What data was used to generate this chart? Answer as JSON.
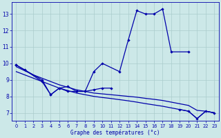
{
  "title": "Graphe des températures (°c)",
  "background_color": "#cce8e8",
  "line_color": "#0000aa",
  "xlim": [
    -0.5,
    23.5
  ],
  "ylim": [
    6.5,
    13.7
  ],
  "xticks": [
    0,
    1,
    2,
    3,
    4,
    5,
    6,
    7,
    8,
    9,
    10,
    11,
    12,
    13,
    14,
    15,
    16,
    17,
    18,
    19,
    20,
    21,
    22,
    23
  ],
  "yticks": [
    7,
    8,
    9,
    10,
    11,
    12,
    13
  ],
  "grid_color": "#aacccc",
  "line1_x": [
    0,
    1,
    3,
    4,
    5,
    6,
    7,
    8,
    9,
    10,
    11
  ],
  "line1_y": [
    9.9,
    9.6,
    8.9,
    8.1,
    8.5,
    8.3,
    8.3,
    8.3,
    8.4,
    8.5,
    8.5
  ],
  "line2_x": [
    0,
    3,
    4,
    5,
    6,
    7,
    8,
    9,
    10,
    12,
    13,
    14,
    15,
    16,
    17,
    18,
    20
  ],
  "line2_y": [
    9.9,
    9.0,
    8.1,
    8.5,
    8.6,
    8.3,
    8.3,
    9.5,
    10.0,
    9.5,
    11.4,
    13.2,
    13.0,
    13.0,
    13.3,
    10.7,
    10.7
  ],
  "line3_x": [
    0,
    1,
    2,
    3,
    4,
    5,
    6,
    7,
    8,
    9,
    10,
    11,
    12,
    13,
    14,
    15,
    16,
    17,
    18,
    19,
    20,
    21,
    22,
    23
  ],
  "line3_y": [
    9.8,
    9.55,
    9.3,
    9.1,
    8.9,
    8.7,
    8.55,
    8.4,
    8.3,
    8.2,
    8.15,
    8.1,
    8.05,
    8.0,
    7.95,
    7.88,
    7.82,
    7.75,
    7.65,
    7.55,
    7.45,
    7.15,
    7.1,
    7.0
  ],
  "line4_x": [
    0,
    1,
    2,
    3,
    4,
    5,
    6,
    7,
    8,
    9,
    10,
    11,
    12,
    13,
    14,
    15,
    16,
    17,
    18,
    19,
    20,
    21,
    22,
    23
  ],
  "line4_y": [
    9.5,
    9.3,
    9.1,
    8.9,
    8.7,
    8.5,
    8.35,
    8.2,
    8.1,
    8.0,
    7.93,
    7.87,
    7.8,
    7.73,
    7.65,
    7.56,
    7.48,
    7.4,
    7.3,
    7.2,
    7.1,
    6.65,
    7.1,
    7.0
  ],
  "line4_marker_x": [
    19,
    20,
    21,
    22,
    23
  ],
  "line4_marker_y": [
    7.2,
    7.1,
    6.65,
    7.1,
    7.0
  ]
}
